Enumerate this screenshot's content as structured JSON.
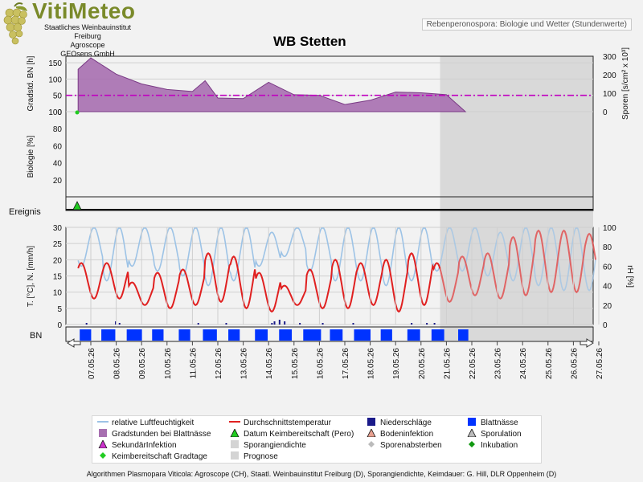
{
  "header": {
    "logo_name": "VitiMeteo",
    "logo_line1": "Staatliches Weinbauinstitut Freiburg",
    "logo_line2": "Agroscope",
    "logo_line3": "GEOsens GmbH",
    "tag": "Rebenperonospora: Biologie und Wetter (Stundenwerte)"
  },
  "colors": {
    "humidity": "#9dc3e6",
    "temperature": "#e02020",
    "wet_degree_hours": "#a76fb0",
    "wet_degree_hours_line": "#7a3a85",
    "spore_dashline": "#c000c0",
    "prognosis_bg": "#d9d9d9",
    "leaf_wetness": "#0033ff",
    "precip": "#1a1a8a",
    "germination_marker": "#22cc22"
  },
  "chart_data": [
    {
      "type": "area",
      "panel": "top",
      "title": "WB Stetten",
      "ylabel": "Gradstd. BN [h]",
      "ylabel_right": "Sporen [s/cm² x 10³]",
      "ylim": [
        0,
        170
      ],
      "yticks": [
        0,
        50,
        100,
        150
      ],
      "ylim_right": [
        0,
        300
      ],
      "yticks_right": [
        0,
        100,
        200,
        300
      ],
      "x": [
        "06.05.26 12:00",
        "07.05.26",
        "08.05.26",
        "09.05.26",
        "10.05.26",
        "11.05.26",
        "11.05.26 12:00",
        "12.05.26",
        "13.05.26",
        "14.05.26",
        "15.05.26",
        "16.05.26",
        "17.05.26",
        "18.05.26",
        "19.05.26",
        "20.05.26",
        "21.05.26",
        "21.05.26 18:00"
      ],
      "series": [
        {
          "name": "Gradstunden bei Blattnässe",
          "values": [
            130,
            165,
            115,
            85,
            68,
            62,
            95,
            42,
            40,
            90,
            52,
            50,
            22,
            35,
            60,
            58,
            52,
            0
          ]
        }
      ],
      "spore_density_line": 50,
      "germination_marker_x": "07.05.26"
    },
    {
      "type": "line",
      "panel": "biology",
      "ylabel": "Biologie [%]",
      "ylim": [
        0,
        100
      ],
      "yticks": [
        20,
        40,
        60,
        80,
        100
      ],
      "series": []
    },
    {
      "type": "line",
      "panel": "event",
      "ylabel": "Ereignis",
      "events": [
        {
          "name": "Datum Keimbereitschaft (Pero)",
          "x": "07.05.26"
        }
      ]
    },
    {
      "type": "line",
      "panel": "weather",
      "ylabel": "T. [°C], N. [mm/h]",
      "ylabel_right": "rH [%]",
      "ylim": [
        0,
        30
      ],
      "yticks": [
        0,
        5,
        10,
        15,
        20,
        25,
        30
      ],
      "ylim_right": [
        0,
        100
      ],
      "yticks_right": [
        0,
        20,
        40,
        60,
        80,
        100
      ],
      "x_start": "06.05.26 12:00",
      "x_end": "27.05.26",
      "prognosis_start": "20.05.26 18:00",
      "series": [
        {
          "name": "Durchschnittstemperatur",
          "daily_min": [
            8,
            8,
            6,
            5,
            6,
            7,
            5,
            4,
            6,
            5,
            5,
            6,
            4,
            6,
            7,
            9,
            8,
            9,
            10,
            10,
            12
          ],
          "daily_max": [
            19,
            19,
            13,
            16,
            17,
            22,
            21,
            16,
            12,
            17,
            20,
            19,
            20,
            22,
            19,
            21,
            22,
            27,
            29,
            29,
            28
          ]
        },
        {
          "name": "relative Luftfeuchtigkeit",
          "daily_min": [
            60,
            45,
            60,
            55,
            50,
            40,
            45,
            60,
            70,
            55,
            45,
            45,
            40,
            45,
            55,
            55,
            50,
            45,
            40,
            35,
            35
          ],
          "daily_max": [
            100,
            100,
            100,
            100,
            100,
            100,
            100,
            95,
            100,
            100,
            100,
            100,
            100,
            100,
            100,
            100,
            95,
            100,
            100,
            100,
            100
          ]
        },
        {
          "name": "Niederschläge",
          "values_days": [
            "08.05.26",
            "14.05.26",
            "15.05.26",
            "16.05.26",
            "19.05.26"
          ]
        }
      ]
    },
    {
      "type": "bar",
      "panel": "leaf_wetness",
      "ylabel": "BN",
      "series": [
        {
          "name": "Blattnässe",
          "periods": [
            [
              0.0,
              0.45
            ],
            [
              0.85,
              1.4
            ],
            [
              1.85,
              2.45
            ],
            [
              2.85,
              3.3
            ],
            [
              3.9,
              4.35
            ],
            [
              4.85,
              5.4
            ],
            [
              5.85,
              6.3
            ],
            [
              6.9,
              7.4
            ],
            [
              7.85,
              8.35
            ],
            [
              8.8,
              9.5
            ],
            [
              9.85,
              10.35
            ],
            [
              10.8,
              11.45
            ],
            [
              11.85,
              12.3
            ],
            [
              12.9,
              13.4
            ],
            [
              13.85,
              14.35
            ],
            [
              14.9,
              15.3
            ]
          ]
        }
      ]
    }
  ],
  "x_ticks": [
    "07.05.26",
    "08.05.26",
    "09.05.26",
    "10.05.26",
    "11.05.26",
    "12.05.26",
    "13.05.26",
    "14.05.26",
    "15.05.26",
    "16.05.26",
    "17.05.26",
    "18.05.26",
    "19.05.26",
    "20.05.26",
    "21.05.26",
    "22.05.26",
    "23.05.26",
    "24.05.26",
    "25.05.26",
    "26.05.26",
    "27.05.26"
  ],
  "legend": [
    {
      "label": "relative Luftfeuchtigkeit",
      "symbol": "line",
      "color": "#9dc3e6"
    },
    {
      "label": "Durchschnittstemperatur",
      "symbol": "line",
      "color": "#e02020"
    },
    {
      "label": "Niederschläge",
      "symbol": "square",
      "color": "#1a1a8a"
    },
    {
      "label": "Blattnässe",
      "symbol": "square",
      "color": "#0033ff"
    },
    {
      "label": "Gradstunden bei Blattnässe",
      "symbol": "square",
      "color": "#a76fb0"
    },
    {
      "label": "Datum Keimbereitschaft (Pero)",
      "symbol": "triangle",
      "color": "#22cc22"
    },
    {
      "label": "Bodeninfektion",
      "symbol": "triangle",
      "color": "#e8a090"
    },
    {
      "label": "Sporulation",
      "symbol": "triangle",
      "color": "#bbbbbb"
    },
    {
      "label": "SekundärInfektion",
      "symbol": "triangle",
      "color": "#cc33cc"
    },
    {
      "label": "Sporangiendichte",
      "symbol": "square",
      "color": "#d4d4d4"
    },
    {
      "label": "Sporenabsterben",
      "symbol": "diamond",
      "color": "#bbbbbb"
    },
    {
      "label": "Inkubation",
      "symbol": "diamond",
      "color": "#119911"
    },
    {
      "label": "Keimbereitschaft Gradtage",
      "symbol": "diamond",
      "color": "#22cc22"
    },
    {
      "label": "Prognose",
      "symbol": "square",
      "color": "#d4d4d4"
    }
  ],
  "footer": "Algorithmen Plasmopara Viticola: Agroscope (CH), Staatl. Weinbauinstitut Freiburg (D), Sporangiendichte, Keimdauer: G. Hill, DLR Oppenheim (D)"
}
